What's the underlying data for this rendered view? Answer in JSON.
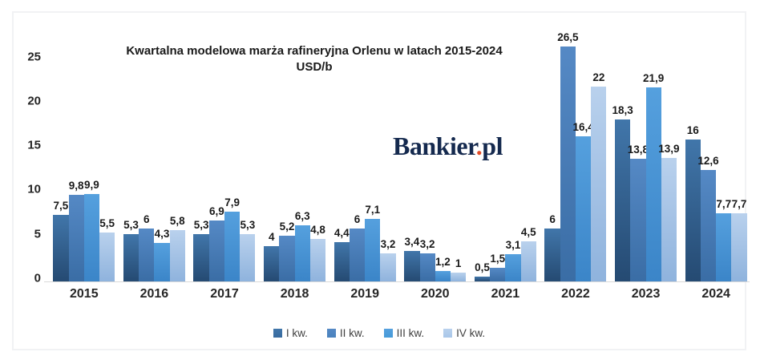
{
  "chart_data": {
    "type": "bar",
    "title": "Kwartalna modelowa marża rafineryjna Orlenu w latach 2015-2024",
    "subtitle": "USD/b",
    "xlabel": "",
    "ylabel": "",
    "categories": [
      "2015",
      "2016",
      "2017",
      "2018",
      "2019",
      "2020",
      "2021",
      "2022",
      "2023",
      "2024"
    ],
    "series": [
      {
        "name": "I kw.",
        "values": [
          7.5,
          5.3,
          5.3,
          4,
          4.4,
          3.4,
          0.5,
          6,
          18.3,
          16
        ],
        "labels": [
          "7,5",
          "5,3",
          "5,3",
          "4",
          "4,4",
          "3,4",
          "0,5",
          "6",
          "18,3",
          "16"
        ],
        "color_top": "#4176aa",
        "color_bottom": "#254a72",
        "legend_color": "#376a9f"
      },
      {
        "name": "II kw.",
        "values": [
          9.8,
          6,
          6.9,
          5.2,
          6,
          3.2,
          1.5,
          26.5,
          13.8,
          12.6
        ],
        "labels": [
          "9,8",
          "6",
          "6,9",
          "5,2",
          "6",
          "3,2",
          "1,5",
          "26,5",
          "13,8",
          "12,6"
        ],
        "color_top": "#5589c5",
        "color_bottom": "#3a6da5",
        "legend_color": "#4a82bd"
      },
      {
        "name": "III kw.",
        "values": [
          9.9,
          4.3,
          7.9,
          6.3,
          7.1,
          1.2,
          3.1,
          16.4,
          21.9,
          7.7
        ],
        "labels": [
          "9,9",
          "4,3",
          "7,9",
          "6,3",
          "7,1",
          "1,2",
          "3,1",
          "16,4",
          "21,9",
          "7,7"
        ],
        "color_top": "#55a0de",
        "color_bottom": "#3b85c8",
        "legend_color": "#469bd9"
      },
      {
        "name": "IV kw.",
        "values": [
          5.5,
          5.8,
          5.3,
          4.8,
          3.2,
          1,
          4.5,
          22,
          13.9,
          7.7
        ],
        "labels": [
          "5,5",
          "5,8",
          "5,3",
          "4,8",
          "3,2",
          "1",
          "4,5",
          "22",
          "13,9",
          "7,7"
        ],
        "color_top": "#b9d1ed",
        "color_bottom": "#8fb3dd",
        "legend_color": "#a9c7e9"
      }
    ],
    "yticks": [
      0,
      5,
      10,
      15,
      20,
      25
    ],
    "ylim": [
      0,
      26.6
    ],
    "grid": false,
    "legend_position": "bottom",
    "decimal_separator": ","
  },
  "watermark": {
    "brand": "Bankier",
    "dot": ".",
    "suffix": "pl",
    "brand_color": "#14294e",
    "dot_color": "#e34b27"
  }
}
